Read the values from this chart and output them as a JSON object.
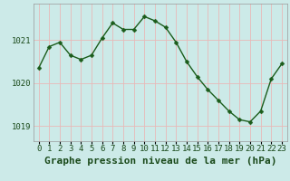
{
  "x": [
    0,
    1,
    2,
    3,
    4,
    5,
    6,
    7,
    8,
    9,
    10,
    11,
    12,
    13,
    14,
    15,
    16,
    17,
    18,
    19,
    20,
    21,
    22,
    23
  ],
  "y": [
    1020.35,
    1020.85,
    1020.95,
    1020.65,
    1020.55,
    1020.65,
    1021.05,
    1021.4,
    1021.25,
    1021.25,
    1021.55,
    1021.45,
    1021.3,
    1020.95,
    1020.5,
    1020.15,
    1019.85,
    1019.6,
    1019.35,
    1019.15,
    1019.1,
    1019.35,
    1020.1,
    1020.45
  ],
  "line_color": "#1a5c1a",
  "marker": "D",
  "marker_size": 2.5,
  "bg_color": "#cceae8",
  "grid_color_v": "#e8b8b8",
  "grid_color_h": "#e8b8b8",
  "title": "Graphe pression niveau de la mer (hPa)",
  "ylabel_ticks": [
    1019,
    1020,
    1021
  ],
  "ylim": [
    1018.65,
    1021.85
  ],
  "xlim": [
    -0.5,
    23.5
  ],
  "tick_fontsize": 6.5,
  "title_fontsize": 8
}
